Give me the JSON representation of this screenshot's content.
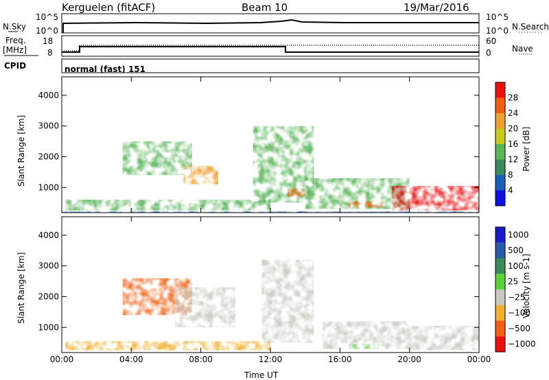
{
  "header": {
    "station": "Kerguelen (fitACF)",
    "beam": "Beam 10",
    "date": "19/Mar/2016"
  },
  "noise_panel": {
    "left_label": "N.Sky",
    "left_ticks": [
      "10^5",
      "10^0"
    ],
    "right_ticks": [
      "10^5",
      "10^0"
    ],
    "right_label": "N.Search",
    "right_legend_style": "dotted"
  },
  "freq_panel": {
    "left_label_1": "Freq.",
    "left_label_2": "[MHz]",
    "left_ticks": [
      "18",
      "8"
    ],
    "right_ticks": [
      "60",
      "0"
    ],
    "right_label": "Nave",
    "right_legend_style": "dotted",
    "cpid_label": "CPID",
    "cpid_text": "normal (fast) 151"
  },
  "chart_data": [
    {
      "type": "heatmap",
      "title": "",
      "xlabel": "",
      "ylabel": "Slant Range [km]",
      "x_ticks": [
        "00:00",
        "04:00",
        "08:00",
        "12:00",
        "16:00",
        "20:00",
        "00:00"
      ],
      "y_ticks": [
        "1000",
        "2000",
        "3000",
        "4000"
      ],
      "y_values": [
        1000,
        2000,
        3000,
        4000
      ],
      "ylim": [
        180,
        4600
      ],
      "xlim_hours": [
        0,
        24
      ],
      "colorbar": {
        "label": "Power [dB]",
        "ticks": [
          "4",
          "8",
          "12",
          "16",
          "20",
          "24",
          "28"
        ],
        "values": [
          4,
          8,
          12,
          16,
          20,
          24,
          28
        ],
        "range": [
          0,
          32
        ],
        "colors": [
          "#1010e0",
          "#1d5fb8",
          "#3a8a5a",
          "#5ab45a",
          "#c8c818",
          "#f0a030",
          "#f06010",
          "#e81010"
        ]
      },
      "features": [
        {
          "t0": 0.0,
          "t1": 24.0,
          "r0": 180,
          "r1": 220,
          "level": 1
        },
        {
          "t0": 0.2,
          "t1": 12.0,
          "r0": 250,
          "r1": 600,
          "level": 3
        },
        {
          "t0": 3.5,
          "t1": 7.5,
          "r0": 1400,
          "r1": 2500,
          "level": 3
        },
        {
          "t0": 7.0,
          "t1": 9.0,
          "r0": 1100,
          "r1": 1700,
          "level": 5
        },
        {
          "t0": 11.0,
          "t1": 14.5,
          "r0": 500,
          "r1": 3000,
          "level": 3
        },
        {
          "t0": 13.0,
          "t1": 14.0,
          "r0": 700,
          "r1": 950,
          "level": 6
        },
        {
          "t0": 14.0,
          "t1": 20.0,
          "r0": 300,
          "r1": 1300,
          "level": 3
        },
        {
          "t0": 16.5,
          "t1": 18.5,
          "r0": 350,
          "r1": 550,
          "level": 6
        },
        {
          "t0": 19.0,
          "t1": 24.0,
          "r0": 250,
          "r1": 1050,
          "level": 7
        }
      ]
    },
    {
      "type": "heatmap",
      "title": "",
      "xlabel": "Time UT",
      "ylabel": "Slant Range [km]",
      "x_ticks": [
        "00:00",
        "04:00",
        "08:00",
        "12:00",
        "16:00",
        "20:00",
        "00:00"
      ],
      "y_ticks": [
        "1000",
        "2000",
        "3000",
        "4000"
      ],
      "y_values": [
        1000,
        2000,
        3000,
        4000
      ],
      "ylim": [
        180,
        4600
      ],
      "xlim_hours": [
        0,
        24
      ],
      "colorbar": {
        "label": "Velocity [m s-1]",
        "ticks": [
          "1000",
          "500",
          "100",
          "25",
          "−25",
          "−100",
          "−500",
          "−1000"
        ],
        "colors": [
          "#1a1ac8",
          "#2a5aa8",
          "#3a8a5a",
          "#5ad23a",
          "#c8c8c0",
          "#f0b030",
          "#f06010",
          "#e81010"
        ]
      },
      "features": [
        {
          "t0": 0.2,
          "t1": 12.0,
          "r0": 250,
          "r1": 550,
          "level": 5
        },
        {
          "t0": 3.5,
          "t1": 7.5,
          "r0": 1400,
          "r1": 2600,
          "level": 6
        },
        {
          "t0": 6.5,
          "t1": 10.0,
          "r0": 1000,
          "r1": 2300,
          "level": 4
        },
        {
          "t0": 11.5,
          "t1": 14.5,
          "r0": 500,
          "r1": 3200,
          "level": 4
        },
        {
          "t0": 15.0,
          "t1": 20.0,
          "r0": 300,
          "r1": 1200,
          "level": 4
        },
        {
          "t0": 16.5,
          "t1": 18.5,
          "r0": 300,
          "r1": 450,
          "level": 3
        },
        {
          "t0": 20.0,
          "t1": 24.0,
          "r0": 250,
          "r1": 1050,
          "level": 4
        }
      ]
    }
  ]
}
